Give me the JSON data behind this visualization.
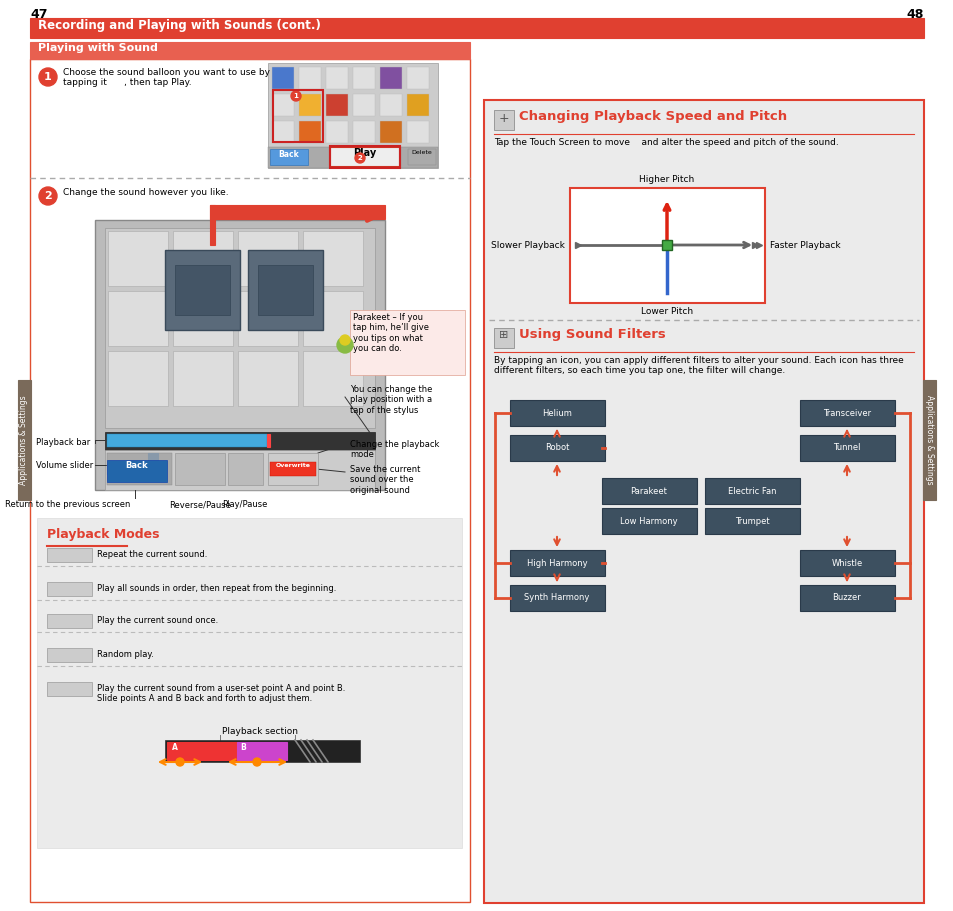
{
  "page_left": "47",
  "page_right": "48",
  "header_title": "Recording and Playing with Sounds (cont.)",
  "header_color": "#E04030",
  "subheader_left": "Playing with Sound",
  "subheader_color": "#E86050",
  "section_right_title1": "Changing Playback Speed and Pitch",
  "section_right_title2": "Using Sound Filters",
  "bg_color": "#FFFFFF",
  "panel_bg": "#EBEBEB",
  "dark_btn_color": "#3D5060",
  "orange_arrow": "#E05030",
  "sidebar_text": "Applications & Settings",
  "sidebar_color": "#7A6A5A",
  "pitch_desc": "Tap the Touch Screen to move    and alter the speed and pitch of the sound.",
  "higher_pitch": "Higher Pitch",
  "lower_pitch": "Lower Pitch",
  "slower_playback": "Slower Playback",
  "faster_playback": "Faster Playback",
  "sound_filters_desc": "By tapping an icon, you can apply different filters to alter your sound. Each icon has three\ndifferent filters, so each time you tap one, the filter will change.",
  "playback_modes_title": "Playback Modes",
  "playback_modes": [
    "Repeat the current sound.",
    "Play all sounds in order, then repeat from the beginning.",
    "Play the current sound once.",
    "Random play.",
    "Play the current sound from a user-set point A and point B.\nSlide points A and B back and forth to adjust them."
  ]
}
